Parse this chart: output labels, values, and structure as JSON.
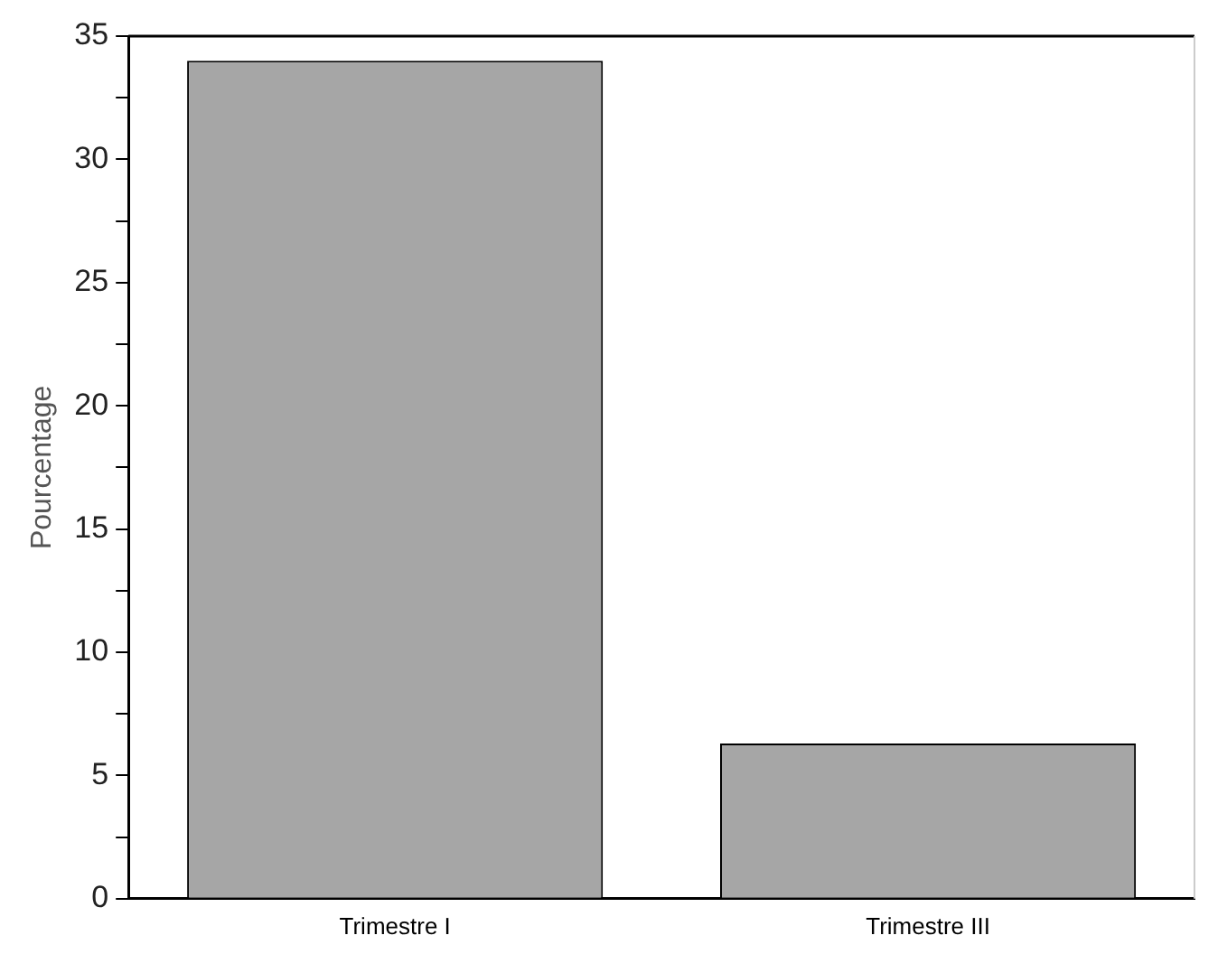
{
  "chart_data": {
    "type": "bar",
    "ylabel": "Pourcentage",
    "categories": [
      "Trimestre I",
      "Trimestre III"
    ],
    "values": [
      34,
      6.3
    ],
    "color": "#a6a6a6",
    "ylim": [
      0,
      35
    ],
    "yticks": [
      0,
      {
        "value": 2.5,
        "label": null
      },
      5,
      {
        "value": 7.5,
        "label": null
      },
      10,
      {
        "value": 12.5,
        "label": null
      },
      15,
      {
        "value": 17.5,
        "label": null
      },
      20,
      {
        "value": 22.5,
        "label": null
      },
      25,
      {
        "value": 27.5,
        "label": null
      },
      30,
      {
        "value": 32.5,
        "label": null
      },
      35
    ],
    "grid": false,
    "legend": false
  }
}
